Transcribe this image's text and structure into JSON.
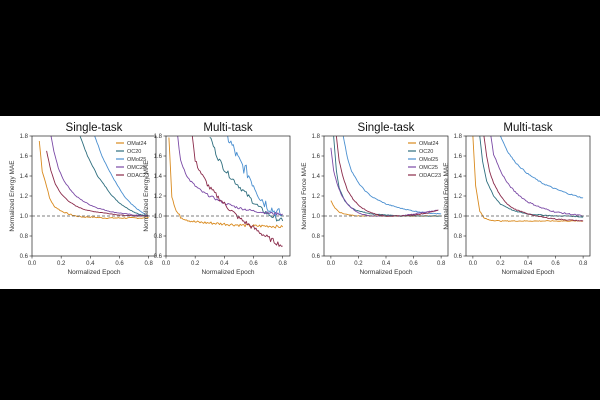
{
  "figure": {
    "background": "#ffffff",
    "page_background": "#000000"
  },
  "chart_data": [
    {
      "type": "line",
      "title": "Single-task",
      "xlabel": "Normalized Epoch",
      "ylabel": "Normalized Energy MAE",
      "xlim": [
        0.0,
        0.85
      ],
      "ylim": [
        0.6,
        1.8
      ],
      "xticks": [
        "0.0",
        "0.2",
        "0.4",
        "0.6",
        "0.8"
      ],
      "yticks": [
        "0.6",
        "0.8",
        "1.0",
        "1.2",
        "1.4",
        "1.6",
        "1.8"
      ],
      "reference_line": 1.0,
      "legend": "top-right",
      "series": [
        {
          "name": "OMat24",
          "color": "#d98a1e",
          "noise": 0.006,
          "x": [
            0.05,
            0.07,
            0.1,
            0.12,
            0.15,
            0.2,
            0.25,
            0.3,
            0.35,
            0.4,
            0.5,
            0.6,
            0.7,
            0.8
          ],
          "y": [
            1.75,
            1.45,
            1.3,
            1.18,
            1.1,
            1.05,
            1.02,
            1.0,
            0.99,
            0.99,
            0.98,
            0.98,
            0.98,
            0.98
          ]
        },
        {
          "name": "OC20",
          "color": "#2e6e7e",
          "noise": 0.004,
          "x": [
            0.33,
            0.38,
            0.45,
            0.5,
            0.55,
            0.6,
            0.65,
            0.7,
            0.75,
            0.8
          ],
          "y": [
            1.8,
            1.6,
            1.4,
            1.3,
            1.2,
            1.13,
            1.08,
            1.04,
            1.01,
            1.0
          ]
        },
        {
          "name": "OMol25",
          "color": "#4a8fd0",
          "noise": 0.004,
          "x": [
            0.43,
            0.48,
            0.53,
            0.58,
            0.63,
            0.68,
            0.73,
            0.78,
            0.8
          ],
          "y": [
            1.8,
            1.6,
            1.45,
            1.32,
            1.2,
            1.12,
            1.06,
            1.01,
            1.0
          ]
        },
        {
          "name": "OMC25",
          "color": "#7b4aa6",
          "noise": 0.004,
          "x": [
            0.13,
            0.15,
            0.18,
            0.22,
            0.26,
            0.3,
            0.35,
            0.4,
            0.45,
            0.5,
            0.55,
            0.6,
            0.7,
            0.8
          ],
          "y": [
            1.8,
            1.65,
            1.48,
            1.35,
            1.27,
            1.2,
            1.15,
            1.11,
            1.08,
            1.06,
            1.04,
            1.03,
            1.01,
            1.0
          ]
        },
        {
          "name": "ODAC23",
          "color": "#8a2a4a",
          "noise": 0.003,
          "x": [
            0.1,
            0.13,
            0.16,
            0.2,
            0.25,
            0.3,
            0.35,
            0.4,
            0.5,
            0.6,
            0.7,
            0.8
          ],
          "y": [
            1.65,
            1.45,
            1.32,
            1.22,
            1.15,
            1.1,
            1.07,
            1.05,
            1.03,
            1.01,
            1.0,
            1.0
          ]
        }
      ]
    },
    {
      "type": "line",
      "title": "Multi-task",
      "xlabel": "Normalized Epoch",
      "ylabel": "Normalized Energy MAE",
      "xlim": [
        0.0,
        0.85
      ],
      "ylim": [
        0.6,
        1.8
      ],
      "xticks": [
        "0.0",
        "0.2",
        "0.4",
        "0.6",
        "0.8"
      ],
      "yticks": [
        "0.6",
        "0.8",
        "1.0",
        "1.2",
        "1.4",
        "1.6",
        "1.8"
      ],
      "reference_line": 1.0,
      "series": [
        {
          "name": "OMat24",
          "color": "#d98a1e",
          "noise": 0.015,
          "x": [
            0.02,
            0.04,
            0.07,
            0.1,
            0.15,
            0.2,
            0.3,
            0.4,
            0.5,
            0.6,
            0.7,
            0.8
          ],
          "y": [
            1.8,
            1.2,
            1.05,
            0.99,
            0.96,
            0.94,
            0.93,
            0.92,
            0.91,
            0.9,
            0.9,
            0.89
          ]
        },
        {
          "name": "OC20",
          "color": "#2e6e7e",
          "noise": 0.025,
          "x": [
            0.3,
            0.35,
            0.4,
            0.45,
            0.5,
            0.55,
            0.6,
            0.65,
            0.7,
            0.75,
            0.8
          ],
          "y": [
            1.8,
            1.6,
            1.47,
            1.38,
            1.3,
            1.22,
            1.14,
            1.07,
            1.02,
            0.98,
            0.95
          ]
        },
        {
          "name": "OMol25",
          "color": "#4a8fd0",
          "noise": 0.06,
          "x": [
            0.42,
            0.47,
            0.5,
            0.55,
            0.6,
            0.65,
            0.7,
            0.75,
            0.8
          ],
          "y": [
            1.8,
            1.65,
            1.55,
            1.45,
            1.32,
            1.18,
            1.1,
            1.04,
            1.0
          ]
        },
        {
          "name": "OMC25",
          "color": "#7b4aa6",
          "noise": 0.012,
          "x": [
            0.08,
            0.1,
            0.15,
            0.2,
            0.25,
            0.3,
            0.4,
            0.5,
            0.6,
            0.7,
            0.8
          ],
          "y": [
            1.8,
            1.55,
            1.38,
            1.3,
            1.24,
            1.2,
            1.13,
            1.08,
            1.05,
            1.03,
            1.02
          ]
        },
        {
          "name": "ODAC23",
          "color": "#8a2a4a",
          "noise": 0.025,
          "x": [
            0.18,
            0.2,
            0.25,
            0.3,
            0.4,
            0.5,
            0.6,
            0.7,
            0.8
          ],
          "y": [
            1.8,
            1.55,
            1.4,
            1.28,
            1.12,
            0.98,
            0.88,
            0.78,
            0.7
          ]
        }
      ]
    },
    {
      "type": "line",
      "title": "Single-task",
      "xlabel": "Normalized Epoch",
      "ylabel": "Normalized Force MAE",
      "xlim": [
        -0.05,
        0.85
      ],
      "ylim": [
        0.6,
        1.8
      ],
      "xticks": [
        "0.0",
        "0.2",
        "0.4",
        "0.6",
        "0.8"
      ],
      "yticks": [
        "0.6",
        "0.8",
        "1.0",
        "1.2",
        "1.4",
        "1.6",
        "1.8"
      ],
      "reference_line": 1.0,
      "legend": "top-right",
      "series": [
        {
          "name": "OMat24",
          "color": "#d98a1e",
          "noise": 0.004,
          "x": [
            0.0,
            0.03,
            0.06,
            0.1,
            0.15,
            0.2,
            0.3,
            0.4,
            0.5,
            0.6,
            0.7,
            0.8
          ],
          "y": [
            1.15,
            1.08,
            1.04,
            1.02,
            1.01,
            1.0,
            1.0,
            1.0,
            1.0,
            1.0,
            1.0,
            1.0
          ]
        },
        {
          "name": "OC20",
          "color": "#2e6e7e",
          "noise": 0.003,
          "x": [
            0.02,
            0.04,
            0.06,
            0.1,
            0.15,
            0.2,
            0.3,
            0.4,
            0.5,
            0.6,
            0.7,
            0.8
          ],
          "y": [
            1.8,
            1.45,
            1.28,
            1.15,
            1.08,
            1.05,
            1.02,
            1.01,
            1.0,
            1.0,
            1.0,
            1.0
          ]
        },
        {
          "name": "OMol25",
          "color": "#4a8fd0",
          "noise": 0.004,
          "x": [
            0.09,
            0.12,
            0.15,
            0.2,
            0.25,
            0.3,
            0.4,
            0.5,
            0.6,
            0.7,
            0.8
          ],
          "y": [
            1.8,
            1.58,
            1.45,
            1.33,
            1.25,
            1.19,
            1.12,
            1.08,
            1.05,
            1.03,
            1.02
          ]
        },
        {
          "name": "OMC25",
          "color": "#7b4aa6",
          "noise": 0.004,
          "x": [
            0.0,
            0.02,
            0.05,
            0.08,
            0.12,
            0.16,
            0.2,
            0.25,
            0.3,
            0.35,
            0.4,
            0.5,
            0.6,
            0.7,
            0.78
          ],
          "y": [
            1.68,
            1.45,
            1.3,
            1.2,
            1.12,
            1.07,
            1.03,
            1.01,
            1.0,
            1.0,
            1.0,
            1.0,
            1.02,
            1.04,
            1.06
          ]
        },
        {
          "name": "ODAC23",
          "color": "#8a2a4a",
          "noise": 0.004,
          "x": [
            0.04,
            0.06,
            0.09,
            0.12,
            0.16,
            0.2,
            0.25,
            0.3,
            0.35,
            0.4,
            0.5,
            0.6,
            0.7,
            0.78
          ],
          "y": [
            1.8,
            1.55,
            1.38,
            1.26,
            1.17,
            1.11,
            1.06,
            1.03,
            1.01,
            1.0,
            1.0,
            1.01,
            1.03,
            1.06
          ]
        }
      ]
    },
    {
      "type": "line",
      "title": "Multi-task",
      "xlabel": "Normalized Epoch",
      "ylabel": "Normalized Force MAE",
      "xlim": [
        -0.05,
        0.85
      ],
      "ylim": [
        0.6,
        1.8
      ],
      "xticks": [
        "0.0",
        "0.2",
        "0.4",
        "0.6",
        "0.8"
      ],
      "yticks": [
        "0.6",
        "0.8",
        "1.0",
        "1.2",
        "1.4",
        "1.6",
        "1.8"
      ],
      "reference_line": 1.0,
      "series": [
        {
          "name": "OMat24",
          "color": "#d98a1e",
          "noise": 0.004,
          "x": [
            0.0,
            0.02,
            0.05,
            0.08,
            0.12,
            0.2,
            0.3,
            0.4,
            0.5,
            0.6,
            0.7,
            0.8
          ],
          "y": [
            1.8,
            1.3,
            1.05,
            0.98,
            0.96,
            0.95,
            0.95,
            0.95,
            0.95,
            0.95,
            0.95,
            0.95
          ]
        },
        {
          "name": "OC20",
          "color": "#2e6e7e",
          "noise": 0.004,
          "x": [
            0.05,
            0.07,
            0.1,
            0.15,
            0.2,
            0.3,
            0.4,
            0.5,
            0.6,
            0.7,
            0.8
          ],
          "y": [
            1.8,
            1.55,
            1.35,
            1.2,
            1.12,
            1.05,
            1.02,
            1.01,
            1.0,
            1.0,
            0.99
          ]
        },
        {
          "name": "OMol25",
          "color": "#4a8fd0",
          "noise": 0.006,
          "x": [
            0.2,
            0.25,
            0.3,
            0.35,
            0.4,
            0.5,
            0.6,
            0.7,
            0.8
          ],
          "y": [
            1.8,
            1.65,
            1.55,
            1.48,
            1.42,
            1.33,
            1.27,
            1.22,
            1.18
          ]
        },
        {
          "name": "OMC25",
          "color": "#7b4aa6",
          "noise": 0.007,
          "x": [
            0.13,
            0.15,
            0.2,
            0.25,
            0.3,
            0.35,
            0.4,
            0.5,
            0.6,
            0.7,
            0.8
          ],
          "y": [
            1.8,
            1.62,
            1.45,
            1.33,
            1.25,
            1.19,
            1.14,
            1.08,
            1.04,
            1.02,
            1.0
          ]
        },
        {
          "name": "ODAC23",
          "color": "#8a2a4a",
          "noise": 0.004,
          "x": [
            0.08,
            0.1,
            0.12,
            0.15,
            0.2,
            0.25,
            0.3,
            0.4,
            0.5,
            0.6,
            0.7,
            0.8
          ],
          "y": [
            1.8,
            1.6,
            1.45,
            1.33,
            1.2,
            1.12,
            1.07,
            1.02,
            0.99,
            0.97,
            0.96,
            0.95
          ]
        }
      ]
    }
  ]
}
